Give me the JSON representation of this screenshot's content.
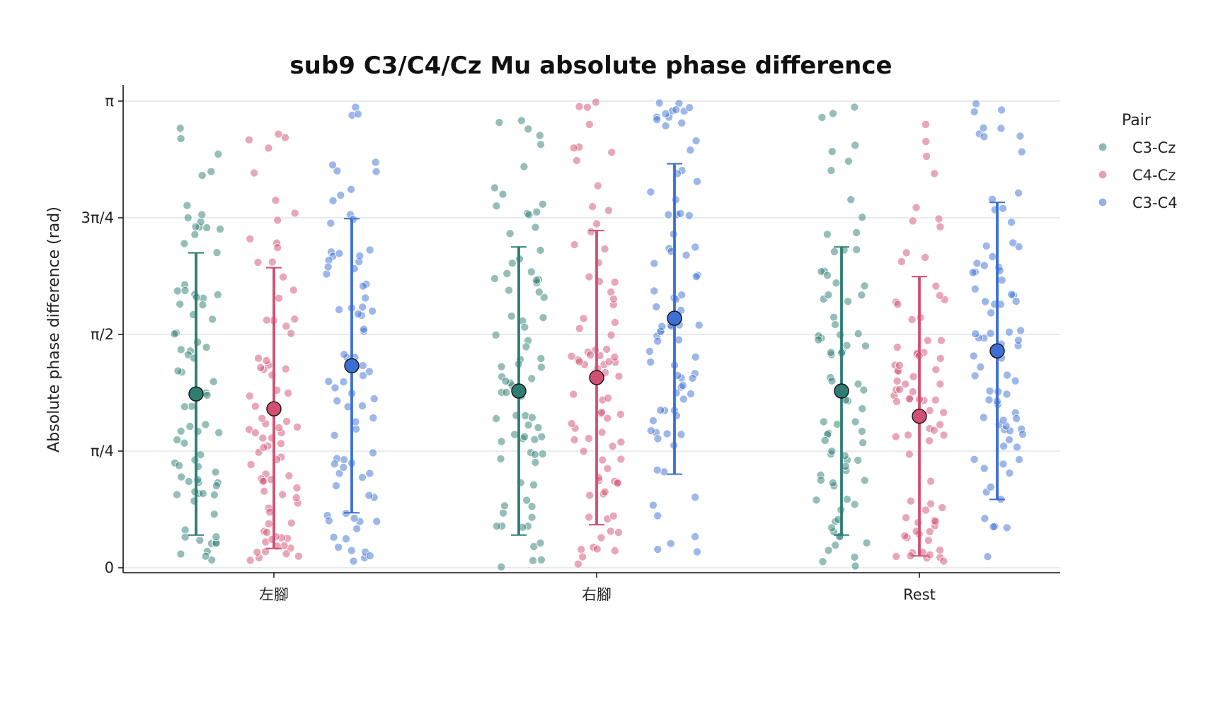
{
  "chart_data": {
    "type": "scatter",
    "title": "sub9 C3/C4/Cz Mu absolute phase difference",
    "xlabel": "",
    "ylabel": "Absolute phase difference (rad)",
    "categories": [
      "左腳",
      "右腳",
      "Rest"
    ],
    "ylim": [
      0,
      3.1416
    ],
    "yticks": [
      {
        "value": 0,
        "label": "0"
      },
      {
        "value": 0.7854,
        "label": "π/4"
      },
      {
        "value": 1.5708,
        "label": "π/2"
      },
      {
        "value": 2.3562,
        "label": "3π/4"
      },
      {
        "value": 3.1416,
        "label": "π"
      }
    ],
    "grid": "horizontal",
    "legend": {
      "title": "Pair",
      "placement": "outside-right"
    },
    "series": [
      {
        "name": "C3-Cz",
        "color": "#2e7d73",
        "mean": [
          1.17,
          1.19,
          1.19
        ],
        "sd_low": [
          0.22,
          0.22,
          0.22
        ],
        "sd_high": [
          2.12,
          2.16,
          2.16
        ]
      },
      {
        "name": "C4-Cz",
        "color": "#d14f72",
        "mean": [
          1.07,
          1.28,
          1.02
        ],
        "sd_low": [
          0.13,
          0.29,
          0.08
        ],
        "sd_high": [
          2.02,
          2.27,
          1.96
        ]
      },
      {
        "name": "C3-C4",
        "color": "#3b6fd4",
        "mean": [
          1.36,
          1.68,
          1.46
        ],
        "sd_low": [
          0.37,
          0.63,
          0.46
        ],
        "sd_high": [
          2.35,
          2.72,
          2.46
        ]
      }
    ]
  }
}
